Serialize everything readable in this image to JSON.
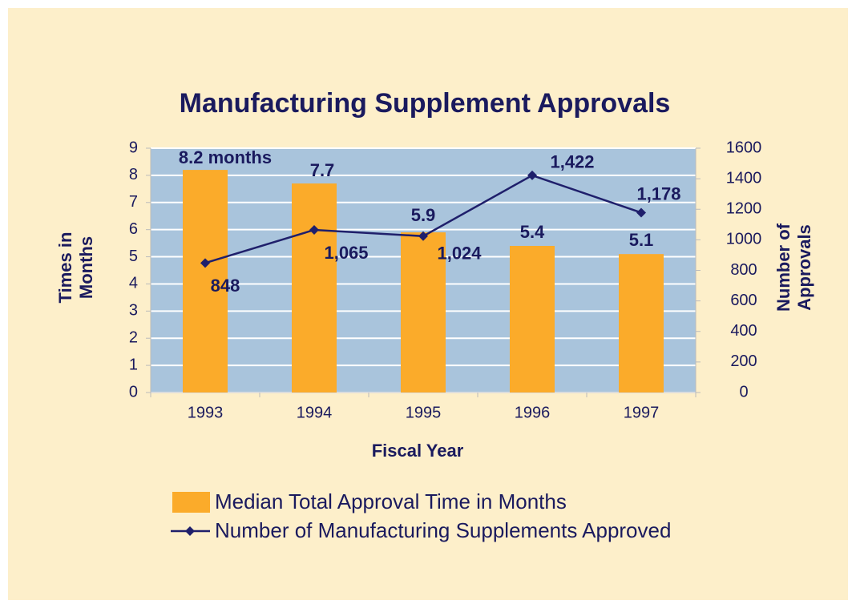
{
  "chart_data": {
    "type": "bar-line",
    "title": "Manufacturing Supplement Approvals",
    "xlabel": "Fiscal Year",
    "ylabel": "Times in Months",
    "y2label": "Number of Approvals",
    "categories": [
      "1993",
      "1994",
      "1995",
      "1996",
      "1997"
    ],
    "series": [
      {
        "name": "Median Total Approval Time in Months",
        "type": "bar",
        "color": "#fbab2a",
        "axis": "y",
        "values": [
          8.2,
          7.7,
          5.9,
          5.4,
          5.1
        ],
        "value_labels": [
          "8.2 months",
          "7.7",
          "5.9",
          "5.4",
          "5.1"
        ]
      },
      {
        "name": "Number of Manufacturing Supplements Approved",
        "type": "line",
        "color": "#1f1f6b",
        "axis": "y2",
        "values": [
          848,
          1065,
          1024,
          1422,
          1178
        ],
        "value_labels": [
          "848",
          "1,065",
          "1,024",
          "1,422",
          "1,178"
        ]
      }
    ],
    "ylim": [
      0,
      9
    ],
    "yticks": [
      0,
      1,
      2,
      3,
      4,
      5,
      6,
      7,
      8,
      9
    ],
    "y2lim": [
      0,
      1600
    ],
    "y2ticks": [
      0,
      200,
      400,
      600,
      800,
      1000,
      1200,
      1400,
      1600
    ],
    "grid": true
  }
}
